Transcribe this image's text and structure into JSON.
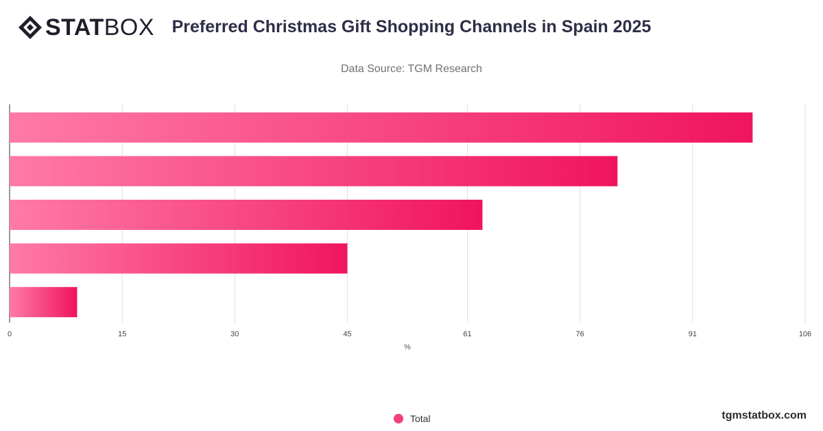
{
  "brand": {
    "logo_bold": "STAT",
    "logo_light": "BOX",
    "website": "tgmstatbox.com"
  },
  "header": {
    "title": "Preferred Christmas Gift Shopping Channels in Spain 2025",
    "subtitle": "Data Source: TGM Research"
  },
  "colors": {
    "bar_start": "#ff7aa8",
    "bar_end": "#f0145f",
    "legend": "#f2407f"
  },
  "chart_data": {
    "type": "bar",
    "orientation": "horizontal",
    "title": "Preferred Christmas Gift Shopping Channels in Spain 2025",
    "xlabel": "%",
    "ylabel": "",
    "xlim": [
      0,
      106
    ],
    "xticks": [
      0,
      15,
      30,
      45,
      61,
      76,
      91,
      106
    ],
    "grid": true,
    "legend_position": "bottom-center",
    "categories": [
      "",
      "",
      "",
      "",
      ""
    ],
    "series": [
      {
        "name": "Total",
        "values": [
          99,
          81,
          63,
          45,
          9
        ]
      }
    ]
  }
}
